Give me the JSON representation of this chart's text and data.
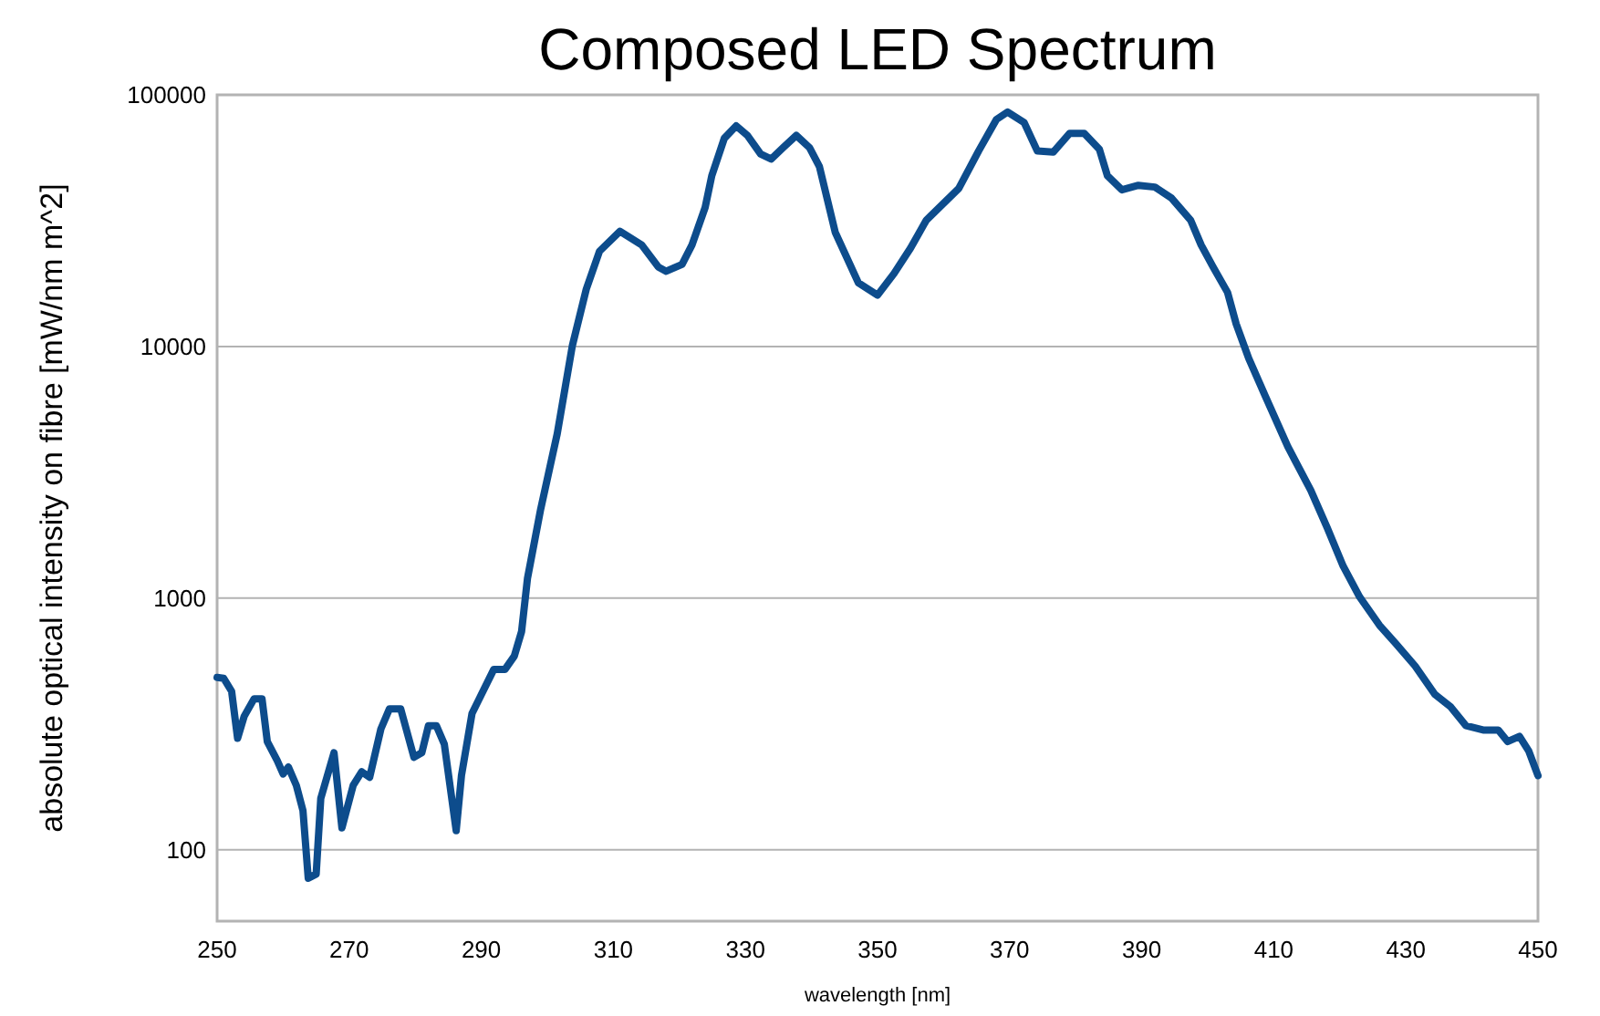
{
  "chart_data": {
    "type": "line",
    "title": "Composed LED Spectrum",
    "xlabel": "wavelength [nm]",
    "ylabel": "absolute optical intensity on fibre [mW/nm m^2]",
    "log": "y",
    "grid": "y",
    "marker": "none",
    "line_style": "solid",
    "xlim": [
      250,
      450
    ],
    "xticks": [
      250,
      270,
      290,
      310,
      330,
      350,
      370,
      390,
      410,
      430,
      450
    ],
    "ylim": [
      52,
      100000
    ],
    "yticks": [
      100,
      1000,
      10000,
      100000
    ],
    "series": [
      {
        "color": "#0d4c8c",
        "x": [
          250,
          251,
          252.2,
          253.1,
          254.1,
          255.6,
          256.8,
          257.6,
          259.1,
          260,
          260.8,
          262,
          263,
          263.8,
          265,
          265.7,
          267.7,
          268.9,
          270.6,
          271.9,
          273.1,
          274.8,
          276.1,
          277.8,
          279.8,
          281,
          282,
          283.2,
          284.4,
          286.2,
          287,
          288.6,
          291.9,
          293.6,
          295,
          296.1,
          297,
          299,
          301.5,
          303.8,
          305.9,
          307.9,
          311,
          314.3,
          316.8,
          318,
          320.4,
          321.9,
          323.9,
          324.9,
          326.8,
          328.6,
          330.3,
          332.3,
          333.9,
          335.7,
          337.7,
          339.7,
          341.2,
          343.6,
          347.1,
          350,
          352.5,
          355,
          357.4,
          362.3,
          365.3,
          368,
          369.7,
          372.2,
          374.2,
          376.6,
          379.1,
          381.3,
          383.6,
          384.8,
          387,
          389.5,
          392,
          394.5,
          397.4,
          399,
          400.8,
          403,
          404.3,
          406.2,
          408.7,
          412.1,
          413.6,
          415.6,
          418.1,
          420.5,
          423,
          426,
          428.5,
          431.4,
          434.4,
          436.8,
          439.1,
          441.7,
          444,
          445.4,
          447.2,
          448.6,
          450
        ],
        "values": [
          484,
          480,
          426,
          277,
          339,
          398,
          398,
          269,
          226,
          200,
          213,
          180,
          143,
          77,
          80,
          160,
          243,
          122,
          180,
          204,
          194,
          302,
          363,
          363,
          233,
          243,
          311,
          311,
          263,
          119,
          197,
          348,
          521,
          521,
          588,
          736,
          1200,
          2260,
          4500,
          10100,
          16900,
          23900,
          28700,
          25300,
          20700,
          19900,
          21200,
          25300,
          35700,
          47700,
          67200,
          75300,
          69000,
          58200,
          55600,
          61700,
          69000,
          61700,
          51900,
          28400,
          17900,
          16000,
          19500,
          24600,
          31800,
          42500,
          59800,
          79800,
          85500,
          77600,
          59800,
          59200,
          70300,
          70300,
          60700,
          47700,
          41900,
          43700,
          43000,
          38900,
          31800,
          25300,
          20700,
          16400,
          12300,
          8970,
          6360,
          4010,
          3370,
          2680,
          1900,
          1340,
          1010,
          780,
          658,
          537,
          414,
          369,
          311,
          299,
          299,
          269,
          282,
          247,
          197
        ]
      }
    ]
  }
}
